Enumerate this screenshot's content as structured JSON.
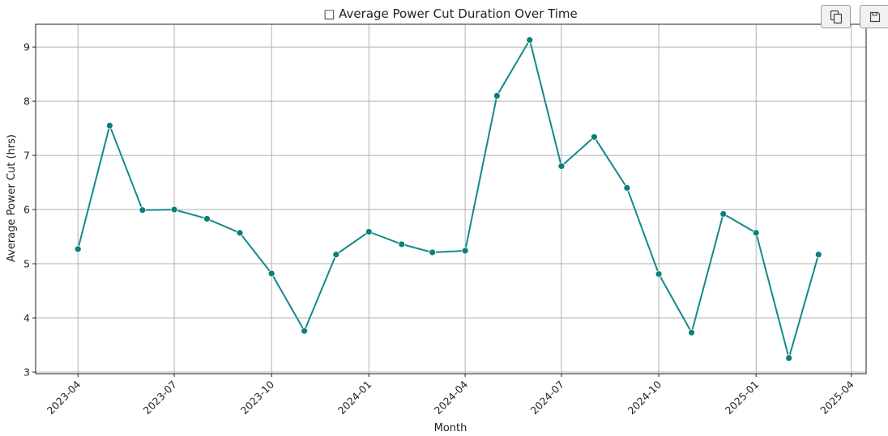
{
  "toolbar": {
    "copy_icon": "copy-icon",
    "save_icon": "floppy-disk-icon"
  },
  "chart_data": {
    "type": "line",
    "title": "□ Average Power Cut Duration Over Time",
    "xlabel": "Month",
    "ylabel": "Average Power Cut (hrs)",
    "x_ticks": [
      "2023-04",
      "2023-07",
      "2023-10",
      "2024-01",
      "2024-04",
      "2024-07",
      "2024-10",
      "2025-01",
      "2025-04"
    ],
    "y_ticks": [
      "3",
      "4",
      "5",
      "6",
      "7",
      "8",
      "9"
    ],
    "ylim": [
      2.97,
      9.42
    ],
    "xlim": [
      "2023-02-20",
      "2025-04-15"
    ],
    "grid": true,
    "line_color": "#14898a",
    "marker_color": "#0b8078",
    "series": [
      {
        "x": [
          "2023-04-01",
          "2023-05-01",
          "2023-06-01",
          "2023-07-01",
          "2023-08-01",
          "2023-09-01",
          "2023-10-01",
          "2023-11-01",
          "2023-12-01",
          "2024-01-01",
          "2024-02-01",
          "2024-03-01",
          "2024-04-01",
          "2024-05-01",
          "2024-06-01",
          "2024-07-01",
          "2024-08-01",
          "2024-09-01",
          "2024-10-01",
          "2024-11-01",
          "2024-12-01",
          "2025-01-01",
          "2025-02-01",
          "2025-03-01"
        ],
        "values": [
          5.27,
          7.55,
          5.99,
          6.0,
          5.83,
          5.57,
          4.82,
          3.76,
          5.17,
          5.59,
          5.36,
          5.21,
          5.24,
          8.1,
          9.13,
          6.8,
          7.34,
          6.4,
          4.81,
          3.73,
          5.92,
          5.57,
          3.26,
          5.17
        ]
      }
    ]
  }
}
